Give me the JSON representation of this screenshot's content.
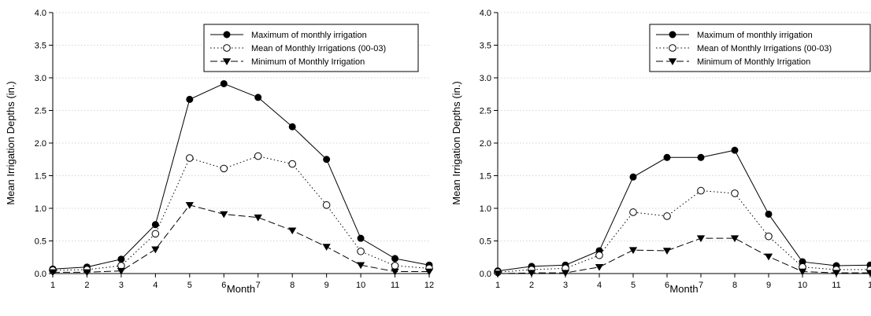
{
  "colors": {
    "line": "#000000",
    "grid": "#c8c8c8",
    "background": "#ffffff"
  },
  "legend_entries": [
    {
      "label": "Maximum of monthly irrigation",
      "marker": "filled-circle",
      "line": "solid"
    },
    {
      "label": "Mean of Monthly Irrigations (00-03)",
      "marker": "open-circle",
      "line": "dotted"
    },
    {
      "label": "Minimum of Monthly Irrigation",
      "marker": "filled-triangle-down",
      "line": "dashed"
    }
  ],
  "chart_data": [
    {
      "type": "line",
      "title": "",
      "xlabel": "Month",
      "ylabel": "Mean Irrigation Depths (in.)",
      "xlim": [
        1,
        12
      ],
      "ylim": [
        0,
        4
      ],
      "x_ticks": [
        1,
        2,
        3,
        4,
        5,
        6,
        7,
        8,
        9,
        10,
        11,
        12
      ],
      "x_tick_labels": [
        "1",
        "2",
        "3",
        "4",
        "5",
        "6",
        "7",
        "8",
        "9",
        "10",
        "11",
        "12"
      ],
      "y_ticks": [
        0,
        0.5,
        1,
        1.5,
        2,
        2.5,
        3,
        3.5,
        4
      ],
      "y_tick_labels": [
        "0.0",
        "0.5",
        "1.0",
        "1.5",
        "2.0",
        "2.5",
        "3.0",
        "3.5",
        "4.0"
      ],
      "grid": true,
      "legend_position": "top-right",
      "x": [
        1,
        2,
        3,
        4,
        5,
        6,
        7,
        8,
        9,
        10,
        11,
        12
      ],
      "series": [
        {
          "name": "Maximum of monthly irrigation",
          "values": [
            0.07,
            0.1,
            0.22,
            0.75,
            2.67,
            2.91,
            2.7,
            2.25,
            1.75,
            0.54,
            0.23,
            0.13
          ]
        },
        {
          "name": "Mean of Monthly Irrigations (00-03)",
          "values": [
            0.05,
            0.06,
            0.12,
            0.61,
            1.77,
            1.61,
            1.8,
            1.68,
            1.05,
            0.34,
            0.12,
            0.08
          ]
        },
        {
          "name": "Minimum of Monthly Irrigation",
          "values": [
            0.02,
            0.02,
            0.04,
            0.37,
            1.05,
            0.91,
            0.86,
            0.66,
            0.41,
            0.13,
            0.03,
            0.03
          ]
        }
      ]
    },
    {
      "type": "line",
      "title": "",
      "xlabel": "Month",
      "ylabel": "Mean Irrigation Depths (in.)",
      "xlim": [
        1,
        12
      ],
      "ylim": [
        0,
        4
      ],
      "x_ticks": [
        1,
        2,
        3,
        4,
        5,
        6,
        7,
        8,
        9,
        10,
        11
      ],
      "x_tick_labels": [
        "1",
        "2",
        "3",
        "4",
        "5",
        "6",
        "7",
        "8",
        "9",
        "10",
        "11"
      ],
      "partial_x_tick_label": "1",
      "y_ticks": [
        0,
        0.5,
        1,
        1.5,
        2,
        2.5,
        3,
        3.5,
        4
      ],
      "y_tick_labels": [
        "0.0",
        "0.5",
        "1.0",
        "1.5",
        "2.0",
        "2.5",
        "3.0",
        "3.5",
        "4.0"
      ],
      "grid": true,
      "legend_position": "top-right",
      "x": [
        1,
        2,
        3,
        4,
        5,
        6,
        7,
        8,
        9,
        10,
        11,
        12
      ],
      "series": [
        {
          "name": "Maximum of monthly irrigation",
          "values": [
            0.04,
            0.11,
            0.13,
            0.35,
            1.48,
            1.78,
            1.78,
            1.89,
            0.91,
            0.18,
            0.12,
            0.13
          ]
        },
        {
          "name": "Mean of Monthly Irrigations (00-03)",
          "values": [
            0.02,
            0.06,
            0.08,
            0.28,
            0.94,
            0.88,
            1.27,
            1.23,
            0.57,
            0.1,
            0.06,
            0.06
          ]
        },
        {
          "name": "Minimum of Monthly Irrigation",
          "values": [
            0.0,
            0.01,
            0.01,
            0.1,
            0.36,
            0.35,
            0.54,
            0.54,
            0.26,
            0.03,
            0.01,
            0.01
          ]
        }
      ]
    }
  ]
}
